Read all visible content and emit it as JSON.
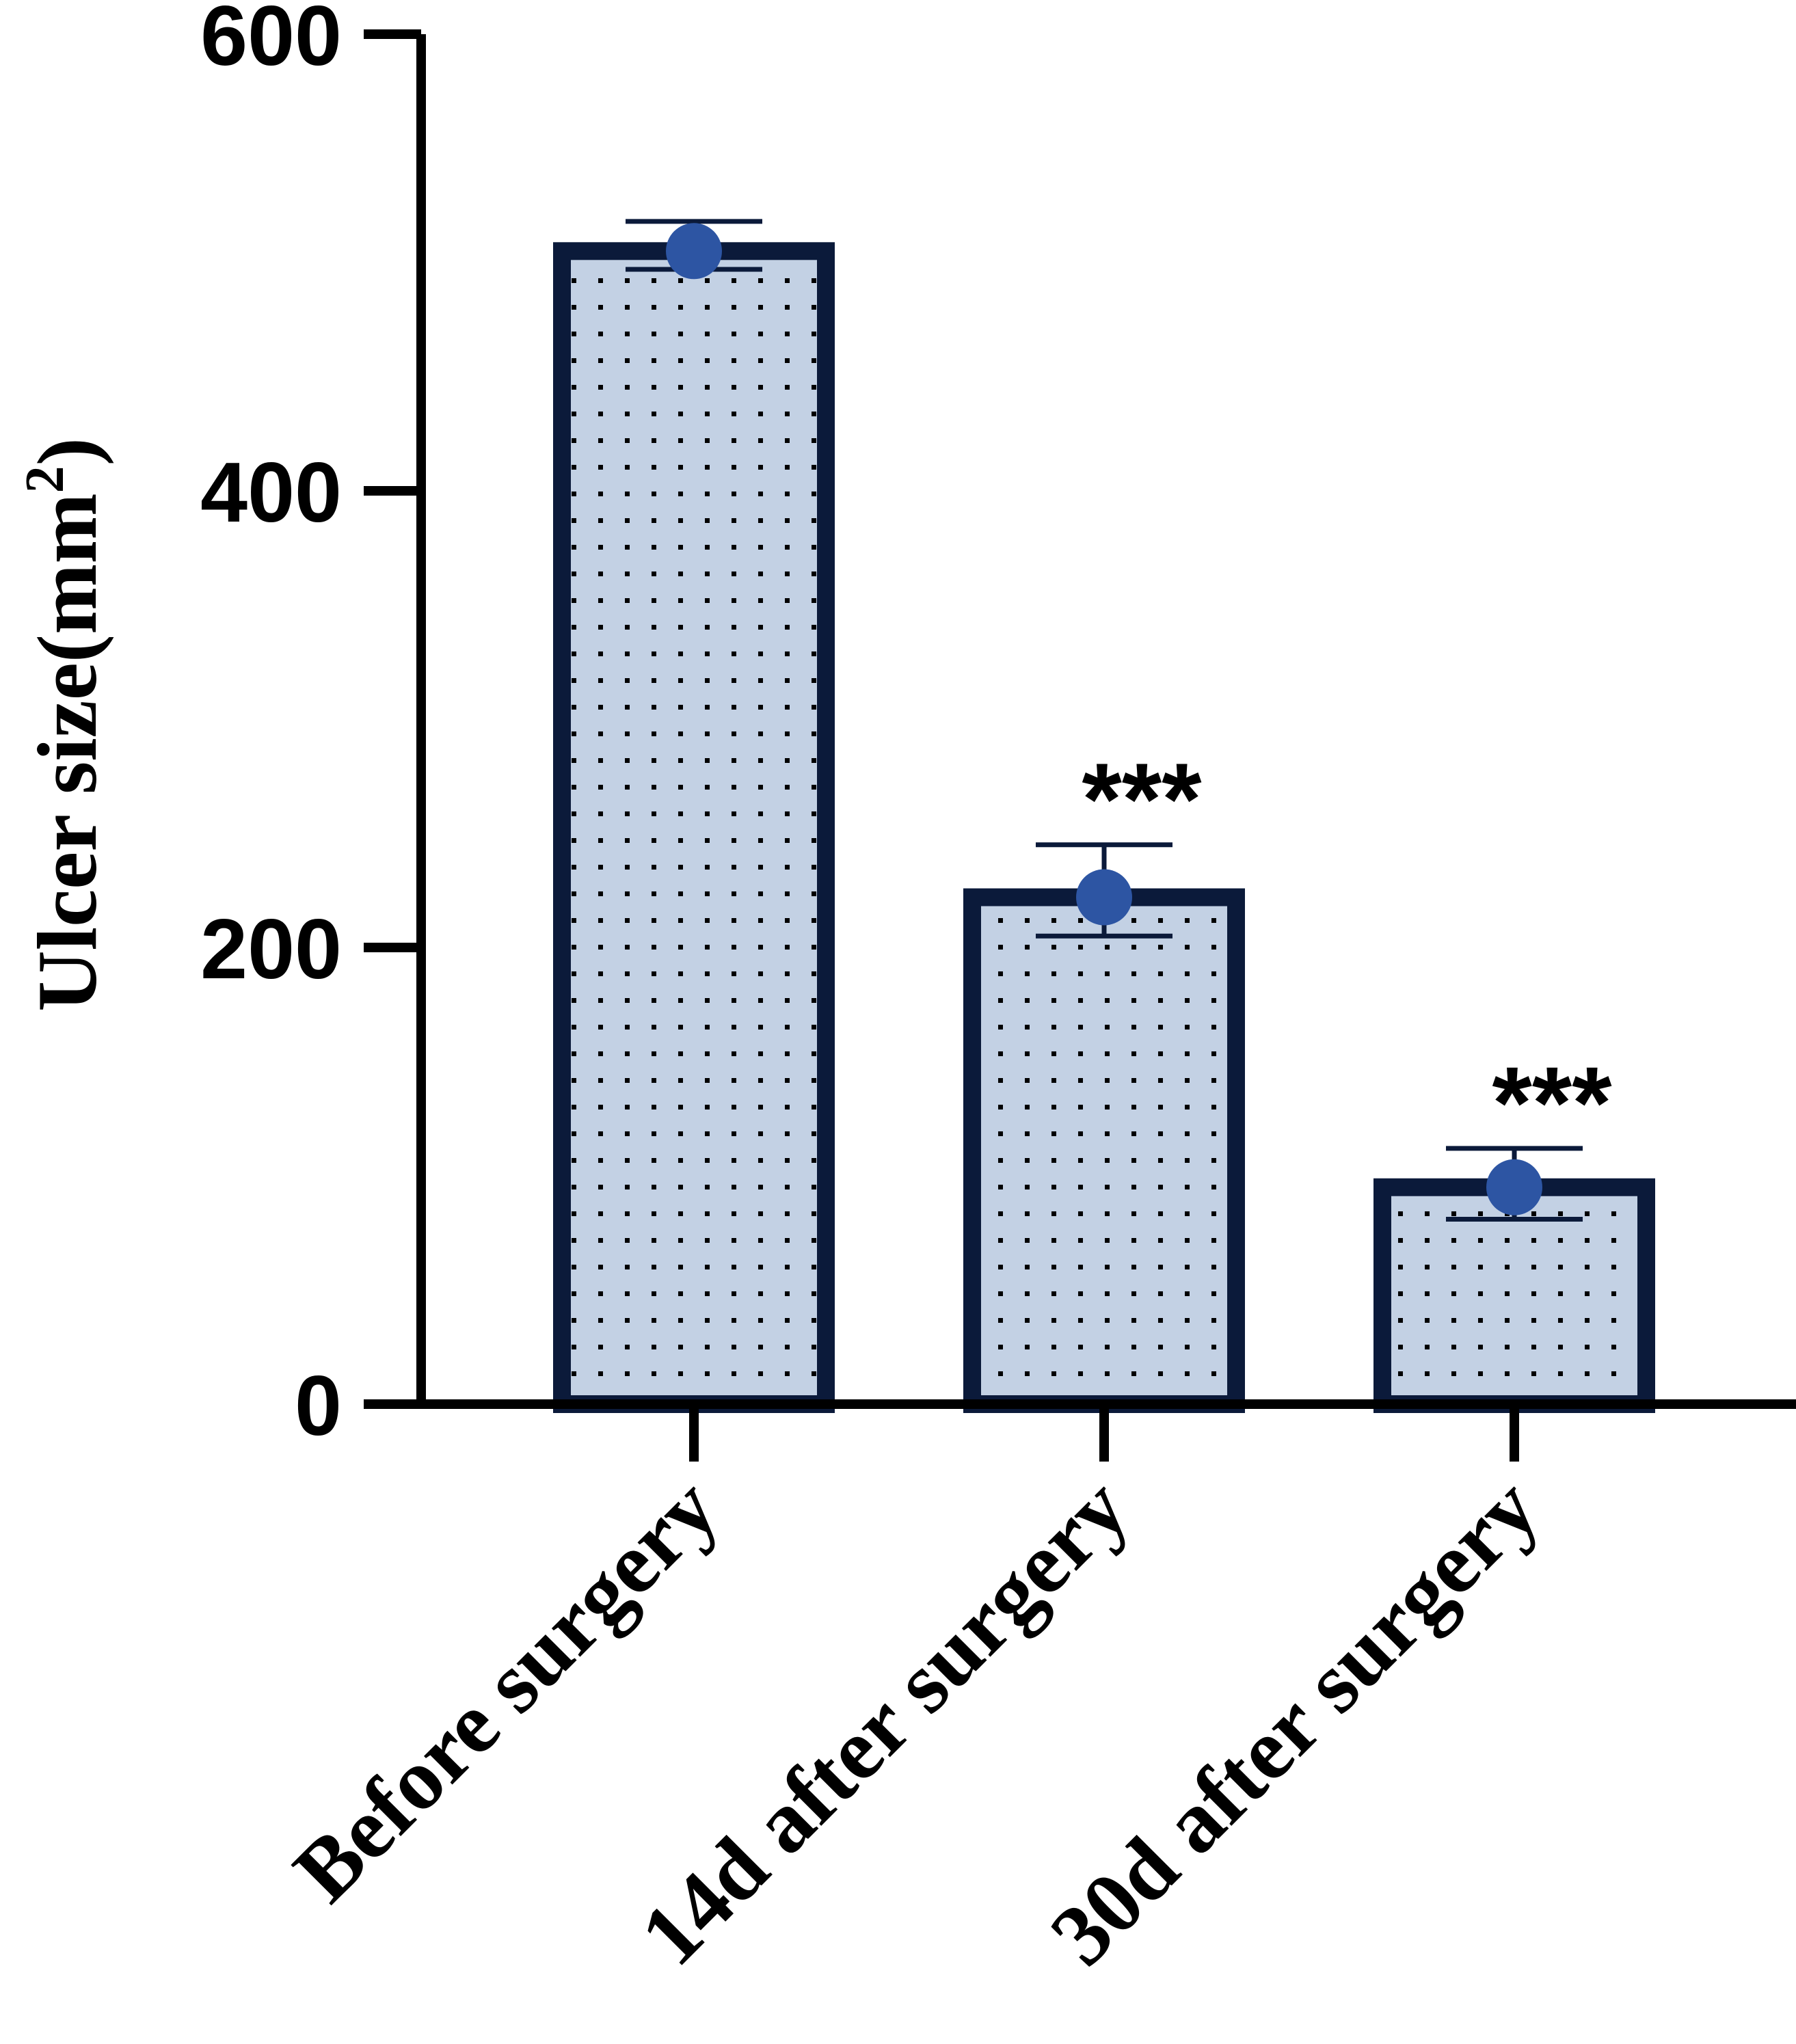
{
  "chart_data": {
    "type": "bar",
    "title": "",
    "xlabel": "",
    "ylabel": "Ulcer size(mm",
    "ylabel_superscript": "2",
    "ylabel_suffix": ")",
    "ylim": [
      0,
      600
    ],
    "yticks": [
      "0",
      "200",
      "400",
      "600"
    ],
    "ytick_values": [
      0,
      200,
      400,
      600
    ],
    "categories": [
      "Before surgery",
      "14d after surgery",
      "30d after surgery"
    ],
    "values": [
      505,
      222,
      95
    ],
    "error_upper": [
      518,
      245,
      112
    ],
    "error_lower": [
      497,
      205,
      81
    ],
    "significance": [
      "",
      "***",
      "***"
    ],
    "grid": false,
    "legend": "none",
    "colors": {
      "bar_fill": "#c3d1e4",
      "bar_edge": "#0b1a3a",
      "dot_pattern": "#000000",
      "point": "#2d55a3",
      "error_bar": "#0b1a3a",
      "axis": "#000000"
    }
  }
}
